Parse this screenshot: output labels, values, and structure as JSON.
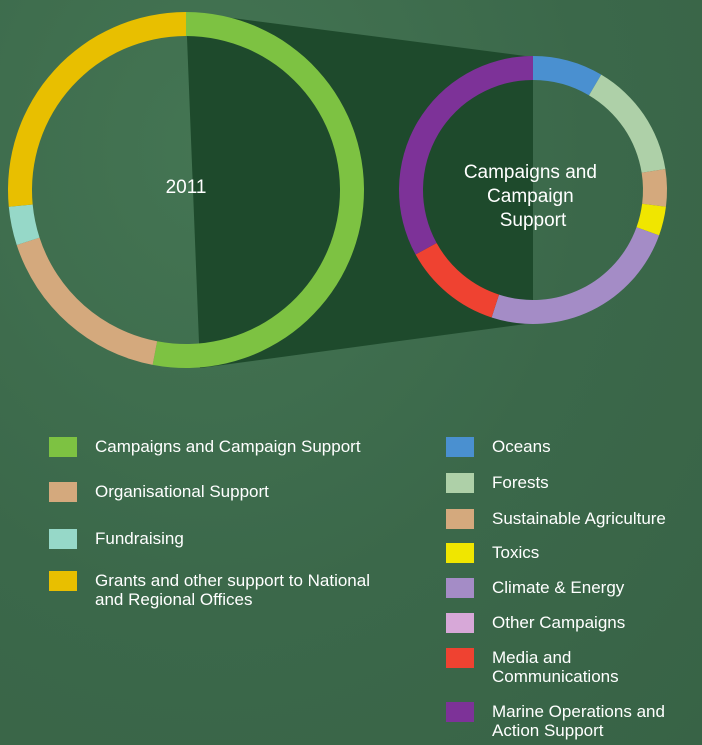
{
  "chart_data": [
    {
      "type": "pie",
      "variant": "donut",
      "title": "2011",
      "categories": [
        "Campaigns and Campaign Support",
        "Organisational Support",
        "Fundraising",
        "Grants and other support to National and Regional Offices"
      ],
      "values": [
        53,
        17,
        3.5,
        26.5
      ],
      "colors": [
        "#7dc242",
        "#d4a97d",
        "#96d8c8",
        "#e8bf00"
      ]
    },
    {
      "type": "pie",
      "variant": "donut",
      "title": "Campaigns and Campaign Support",
      "categories": [
        "Oceans",
        "Forests",
        "Sustainable Agriculture",
        "Toxics",
        "Climate & Energy",
        "Other Campaigns",
        "Media and Communications",
        "Marine Operations and Action Support"
      ],
      "values": [
        8.5,
        14,
        4.5,
        3.5,
        24.5,
        0,
        12,
        33
      ],
      "colors": [
        "#4a90d0",
        "#aed0a8",
        "#d4a97d",
        "#f0e600",
        "#a48cc6",
        "#d7a8d8",
        "#ef4231",
        "#7d3298"
      ]
    }
  ],
  "main_chart": {
    "center_label": "2011"
  },
  "detail_chart": {
    "center_label_lines": [
      "Campaigns and",
      "Campaign",
      "Support"
    ]
  },
  "legend_left": [
    {
      "label": "Campaigns and Campaign Support",
      "color": "#7dc242"
    },
    {
      "label": "Organisational Support",
      "color": "#d4a97d"
    },
    {
      "label": "Fundraising",
      "color": "#96d8c8"
    },
    {
      "label": "Grants and other support to National and Regional Offices",
      "color": "#e8bf00"
    }
  ],
  "legend_right": [
    {
      "label": "Oceans",
      "color": "#4a90d0"
    },
    {
      "label": "Forests",
      "color": "#aed0a8"
    },
    {
      "label": "Sustainable Agriculture",
      "color": "#d4a97d"
    },
    {
      "label": "Toxics",
      "color": "#f0e600"
    },
    {
      "label": "Climate & Energy",
      "color": "#a48cc6"
    },
    {
      "label": "Other Campaigns",
      "color": "#d7a8d8"
    },
    {
      "label": "Media and Communications",
      "color": "#ef4231"
    },
    {
      "label": "Marine Operations and Action Support",
      "color": "#7d3298"
    }
  ],
  "connector_color": "#1e4a2c"
}
